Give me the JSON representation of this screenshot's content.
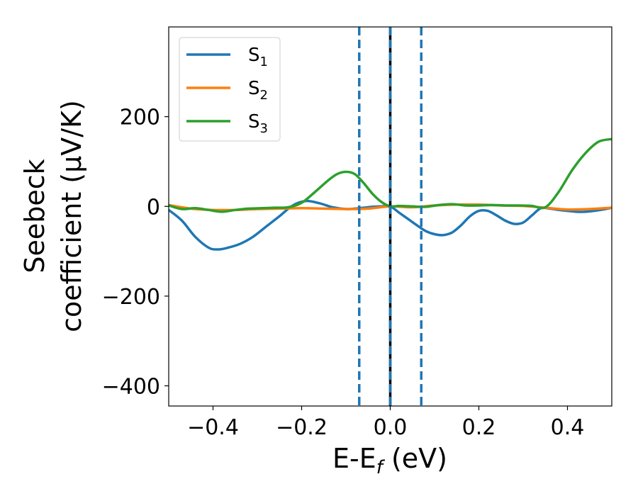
{
  "chart_data": {
    "type": "line",
    "xlabel": {
      "main": "E-E",
      "sub": "f",
      "unit": " (eV)"
    },
    "ylabel": {
      "line1": "Seebeck",
      "line2": "coefficient  (μV/K)"
    },
    "xlim": [
      -0.5,
      0.5
    ],
    "ylim": [
      -445,
      400
    ],
    "xticks": [
      -0.4,
      -0.2,
      0.0,
      0.2,
      0.4
    ],
    "xtick_labels": [
      "−0.4",
      "−0.2",
      "0.0",
      "0.2",
      "0.4"
    ],
    "yticks": [
      -400,
      -200,
      0,
      200
    ],
    "ytick_labels": [
      "−400",
      "−200",
      "0",
      "200"
    ],
    "grid": false,
    "legend_position": "upper-left",
    "vlines": [
      {
        "x": -0.07,
        "style": "dashed",
        "color": "#1f77b4"
      },
      {
        "x": 0.0,
        "style": "solid",
        "color": "#000000"
      },
      {
        "x": 0.0,
        "style": "dashed",
        "color": "#1f77b4"
      },
      {
        "x": 0.07,
        "style": "dashed",
        "color": "#1f77b4"
      }
    ],
    "series": [
      {
        "name": "S",
        "sub": "1",
        "color": "#1f77b4",
        "x": [
          -0.5,
          -0.47,
          -0.44,
          -0.41,
          -0.39,
          -0.37,
          -0.34,
          -0.31,
          -0.28,
          -0.25,
          -0.22,
          -0.19,
          -0.16,
          -0.13,
          -0.1,
          -0.08,
          -0.06,
          -0.04,
          -0.02,
          0.0,
          0.02,
          0.04,
          0.06,
          0.08,
          0.1,
          0.12,
          0.14,
          0.16,
          0.18,
          0.2,
          0.22,
          0.24,
          0.26,
          0.28,
          0.3,
          0.32,
          0.34,
          0.36,
          0.38,
          0.4,
          0.42,
          0.44,
          0.46,
          0.48,
          0.5
        ],
        "y": [
          -8,
          -32,
          -68,
          -92,
          -96,
          -93,
          -84,
          -68,
          -45,
          -22,
          2,
          12,
          7,
          -2,
          -6,
          -5,
          -3,
          -1,
          0,
          0,
          -14,
          -28,
          -42,
          -55,
          -62,
          -64,
          -58,
          -42,
          -22,
          -10,
          -10,
          -20,
          -32,
          -39,
          -36,
          -20,
          -4,
          -5,
          -8,
          -10,
          -12,
          -12,
          -10,
          -7,
          -3
        ]
      },
      {
        "name": "S",
        "sub": "2",
        "color": "#ff7f0e",
        "x": [
          -0.5,
          -0.45,
          -0.4,
          -0.35,
          -0.3,
          -0.25,
          -0.2,
          -0.15,
          -0.1,
          -0.05,
          0.0,
          0.05,
          0.1,
          0.15,
          0.2,
          0.25,
          0.3,
          0.35,
          0.4,
          0.45,
          0.5
        ],
        "y": [
          3,
          -5,
          -8,
          -8,
          -6,
          -5,
          -4,
          -5,
          -6,
          -5,
          0,
          -2,
          2,
          4,
          4,
          2,
          1,
          -3,
          -7,
          -6,
          -3
        ]
      },
      {
        "name": "S",
        "sub": "3",
        "color": "#2ca02c",
        "x": [
          -0.5,
          -0.47,
          -0.44,
          -0.41,
          -0.38,
          -0.35,
          -0.32,
          -0.29,
          -0.26,
          -0.23,
          -0.2,
          -0.17,
          -0.14,
          -0.12,
          -0.1,
          -0.08,
          -0.06,
          -0.04,
          -0.02,
          0.0,
          0.02,
          0.05,
          0.08,
          0.11,
          0.14,
          0.17,
          0.2,
          0.23,
          0.26,
          0.29,
          0.32,
          0.35,
          0.38,
          0.41,
          0.44,
          0.47,
          0.5
        ],
        "y": [
          2,
          -6,
          -4,
          -8,
          -12,
          -8,
          -5,
          -4,
          -3,
          -2,
          8,
          32,
          58,
          72,
          77,
          72,
          52,
          28,
          10,
          0,
          1,
          0,
          -1,
          3,
          5,
          2,
          2,
          3,
          2,
          2,
          1,
          -2,
          32,
          80,
          118,
          144,
          150
        ]
      }
    ]
  }
}
